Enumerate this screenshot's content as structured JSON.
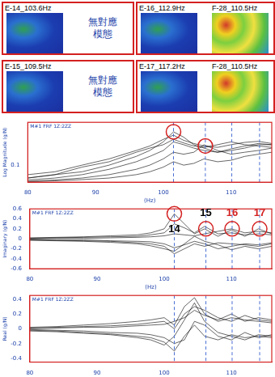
{
  "mode_panels": [
    {
      "label": "E-14_103.6Hz",
      "text_lines": [
        "無對應",
        "模態"
      ]
    },
    {
      "label": "E-16_112.9Hz",
      "match_label": "F-28_110.5Hz"
    },
    {
      "label": "E-15_109.5Hz",
      "text_lines": [
        "無對應",
        "模態"
      ]
    },
    {
      "label": "E-17_117.2Hz",
      "match_label": "F-28_110.5Hz"
    }
  ],
  "chart_data": [
    {
      "type": "line",
      "title": "M#1 FRF 1Z:2ZZ",
      "ylabel": "Log Magnitude (g/N)",
      "xlabel": "(Hz)",
      "log": "y",
      "grid": false,
      "color": "#000000",
      "x": [
        80,
        84,
        88,
        92,
        96,
        98,
        100,
        101.5,
        103,
        104.5,
        106,
        108,
        110,
        112,
        114,
        116
      ],
      "xlim": [
        80,
        116
      ],
      "xticks": [
        80,
        90,
        100,
        110
      ],
      "ylim": [
        0.04,
        1
      ],
      "yticks": [
        0.1
      ],
      "vlines": [
        101.5,
        106.2,
        110.1,
        114.2
      ],
      "annotations": [
        {
          "x": 101.5,
          "y": 0.6
        },
        {
          "x": 106.2,
          "y": 0.28
        }
      ],
      "series": [
        {
          "values": [
            0.05,
            0.06,
            0.07,
            0.1,
            0.16,
            0.22,
            0.35,
            0.6,
            0.45,
            0.3,
            0.25,
            0.2,
            0.22,
            0.25,
            0.3,
            0.3
          ]
        },
        {
          "values": [
            0.045,
            0.05,
            0.06,
            0.08,
            0.12,
            0.16,
            0.22,
            0.35,
            0.3,
            0.25,
            0.22,
            0.2,
            0.24,
            0.28,
            0.32,
            0.3
          ]
        },
        {
          "values": [
            0.042,
            0.045,
            0.05,
            0.06,
            0.08,
            0.1,
            0.14,
            0.2,
            0.18,
            0.2,
            0.3,
            0.22,
            0.18,
            0.2,
            0.22,
            0.25
          ]
        },
        {
          "values": [
            0.05,
            0.06,
            0.09,
            0.12,
            0.2,
            0.25,
            0.3,
            0.4,
            0.33,
            0.28,
            0.26,
            0.3,
            0.35,
            0.3,
            0.28,
            0.26
          ]
        },
        {
          "values": [
            0.041,
            0.043,
            0.046,
            0.05,
            0.06,
            0.07,
            0.09,
            0.12,
            0.1,
            0.11,
            0.14,
            0.12,
            0.13,
            0.16,
            0.18,
            0.2
          ]
        },
        {
          "values": [
            0.06,
            0.07,
            0.1,
            0.14,
            0.22,
            0.28,
            0.4,
            0.5,
            0.38,
            0.32,
            0.28,
            0.26,
            0.3,
            0.34,
            0.36,
            0.32
          ]
        }
      ]
    },
    {
      "type": "line",
      "title": "M#1 FRF 1Z:2ZZ",
      "ylabel": "Imaginary (g/N)",
      "xlabel": "(Hz)",
      "grid": false,
      "color": "#000000",
      "x": [
        80,
        84,
        88,
        92,
        96,
        98,
        100,
        101.5,
        103,
        104.5,
        106,
        108,
        110,
        112,
        114,
        116
      ],
      "xlim": [
        80,
        116
      ],
      "xticks": [
        80,
        90,
        100,
        110
      ],
      "ylim": [
        -0.6,
        0.6
      ],
      "yticks": [
        -0.6,
        -0.4,
        -0.2,
        0,
        0.2,
        0.4,
        0.6
      ],
      "vlines": [
        101.5,
        106.2,
        110.1,
        114.2
      ],
      "annotations": [
        {
          "x": 101.5,
          "y": 0.5,
          "label": "14",
          "color": "#000000"
        },
        {
          "x": 106.2,
          "y": 0.2,
          "label": "15",
          "color": "#000000"
        },
        {
          "x": 110.1,
          "y": 0.2,
          "label": "16",
          "color": "#d42020"
        },
        {
          "x": 114.2,
          "y": 0.2,
          "label": "17",
          "color": "#d42020"
        }
      ],
      "series": [
        {
          "values": [
            0.02,
            0.03,
            0.04,
            0.06,
            0.08,
            0.12,
            0.2,
            0.5,
            0.3,
            0.1,
            0.2,
            0.05,
            0.18,
            0.05,
            0.2,
            0.1
          ]
        },
        {
          "values": [
            -0.02,
            -0.03,
            -0.04,
            -0.05,
            -0.08,
            -0.1,
            -0.15,
            -0.3,
            -0.2,
            -0.1,
            -0.15,
            -0.08,
            -0.1,
            -0.12,
            -0.15,
            -0.1
          ]
        },
        {
          "values": [
            0.01,
            0.02,
            0.03,
            0.04,
            0.05,
            0.08,
            0.12,
            0.3,
            0.22,
            0.12,
            0.25,
            0.1,
            0.12,
            0.08,
            0.1,
            0.08
          ]
        },
        {
          "values": [
            -0.01,
            -0.02,
            -0.02,
            -0.04,
            -0.05,
            -0.06,
            -0.1,
            -0.18,
            -0.12,
            -0.05,
            -0.1,
            -0.2,
            -0.15,
            -0.1,
            -0.12,
            -0.08
          ]
        },
        {
          "values": [
            0,
            0.01,
            0.01,
            0.02,
            0.03,
            0.04,
            0.06,
            0.1,
            0.08,
            0.06,
            0.1,
            0.15,
            0.2,
            0.12,
            0.15,
            0.12
          ]
        },
        {
          "values": [
            -0.03,
            -0.04,
            -0.05,
            -0.07,
            -0.1,
            -0.14,
            -0.2,
            -0.25,
            -0.1,
            0.05,
            -0.05,
            -0.12,
            -0.22,
            -0.15,
            -0.2,
            -0.15
          ]
        }
      ]
    },
    {
      "type": "line",
      "title": "M#1 FRF 1Z:2ZZ",
      "ylabel": "Real (g/N)",
      "grid": false,
      "color": "#000000",
      "x": [
        80,
        84,
        88,
        92,
        96,
        98,
        100,
        101.5,
        103,
        104.5,
        106,
        108,
        110,
        112,
        114,
        116
      ],
      "xlim": [
        80,
        116
      ],
      "xticks": [
        80,
        90,
        100,
        110
      ],
      "ylim": [
        -0.45,
        0.45
      ],
      "yticks": [
        -0.4,
        -0.2,
        0,
        0.2,
        0.4
      ],
      "vlines": [
        101.5,
        106.2,
        110.1,
        114.2
      ],
      "series": [
        {
          "values": [
            0.02,
            0.03,
            0.05,
            0.07,
            0.1,
            0.12,
            0.15,
            0.05,
            0.3,
            0.42,
            0.2,
            0.1,
            0.15,
            0.12,
            0.1,
            0.08
          ]
        },
        {
          "values": [
            -0.02,
            -0.03,
            -0.05,
            -0.07,
            -0.1,
            -0.12,
            -0.18,
            -0.3,
            -0.1,
            0.05,
            -0.1,
            -0.15,
            -0.08,
            -0.12,
            -0.1,
            -0.12
          ]
        },
        {
          "values": [
            0.01,
            0.02,
            0.03,
            0.04,
            0.06,
            0.08,
            0.1,
            0.0,
            0.2,
            0.3,
            0.25,
            0.15,
            0.1,
            0.18,
            0.12,
            0.1
          ]
        },
        {
          "values": [
            -0.01,
            -0.02,
            -0.03,
            -0.05,
            -0.06,
            -0.08,
            -0.12,
            -0.2,
            -0.15,
            0.1,
            0.05,
            -0.1,
            -0.15,
            -0.05,
            -0.12,
            -0.08
          ]
        },
        {
          "values": [
            0.0,
            0.01,
            0.02,
            0.02,
            0.04,
            0.05,
            0.06,
            0.1,
            0.15,
            0.25,
            0.18,
            0.12,
            0.2,
            0.1,
            0.15,
            0.12
          ]
        },
        {
          "values": [
            -0.03,
            -0.04,
            -0.06,
            -0.08,
            -0.12,
            -0.15,
            -0.22,
            -0.1,
            0.12,
            0.35,
            0.1,
            -0.05,
            -0.1,
            -0.15,
            -0.08,
            -0.1
          ]
        }
      ]
    }
  ]
}
